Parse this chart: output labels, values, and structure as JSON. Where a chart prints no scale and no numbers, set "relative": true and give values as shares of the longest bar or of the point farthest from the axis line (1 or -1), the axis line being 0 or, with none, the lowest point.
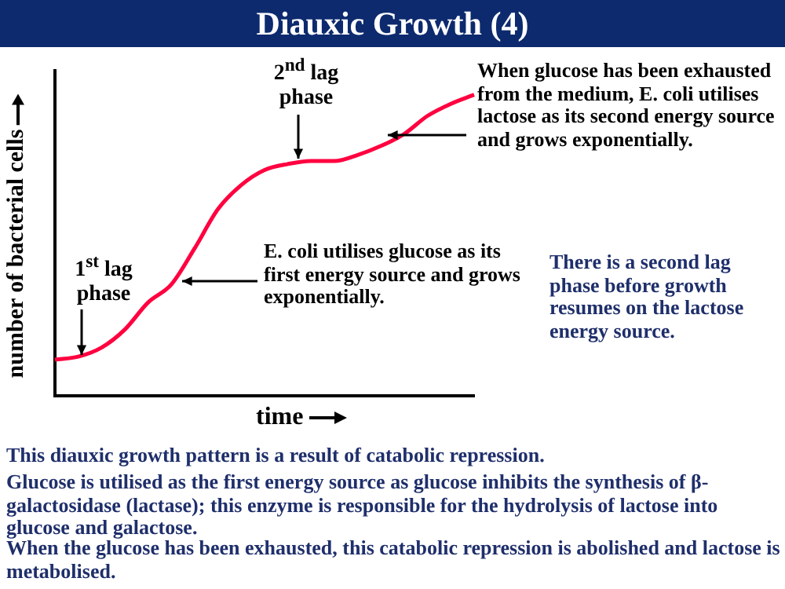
{
  "chart_data": {
    "type": "line",
    "title": "Diauxic Growth (4)",
    "xlabel": "time",
    "ylabel": "number of bacterial cells",
    "relative": true,
    "legend": false,
    "grid": false,
    "marker": "none",
    "categories": [
      null,
      null,
      null,
      null,
      null,
      null,
      null,
      null,
      null,
      null,
      null,
      null,
      null,
      null,
      null,
      null,
      null,
      null,
      null
    ],
    "series": [
      {
        "color": "#ff0040",
        "values": [
          0.12,
          0.13,
          0.16,
          0.22,
          0.31,
          0.37,
          0.49,
          0.62,
          0.7,
          0.75,
          0.77,
          0.78,
          0.78,
          0.8,
          0.83,
          0.87,
          0.93,
          0.97,
          1
        ]
      }
    ],
    "annotations": [
      "1$^{st}$ lag phase",
      "2$^{nd}$ lag phase",
      "When glucose has been exhausted from the medium, E. coli utilises lactose as its second energy source and grows exponentially.",
      "E. coli utilises glucose as its first energy source and grows exponentially.",
      "There is a second lag phase before growth resumes on the lactose energy source.",
      "This diauxic growth pattern is a result of catabolic repression.",
      "Glucose is utilised as the first energy source as glucose inhibits the synthesis of β-galactosidase (lactase); this enzyme is responsible for the hydrolysis of lactose into glucose and galactose.",
      "When the glucose has been exhausted, this catabolic repression is abolished and lactose is metabolised."
    ]
  }
}
